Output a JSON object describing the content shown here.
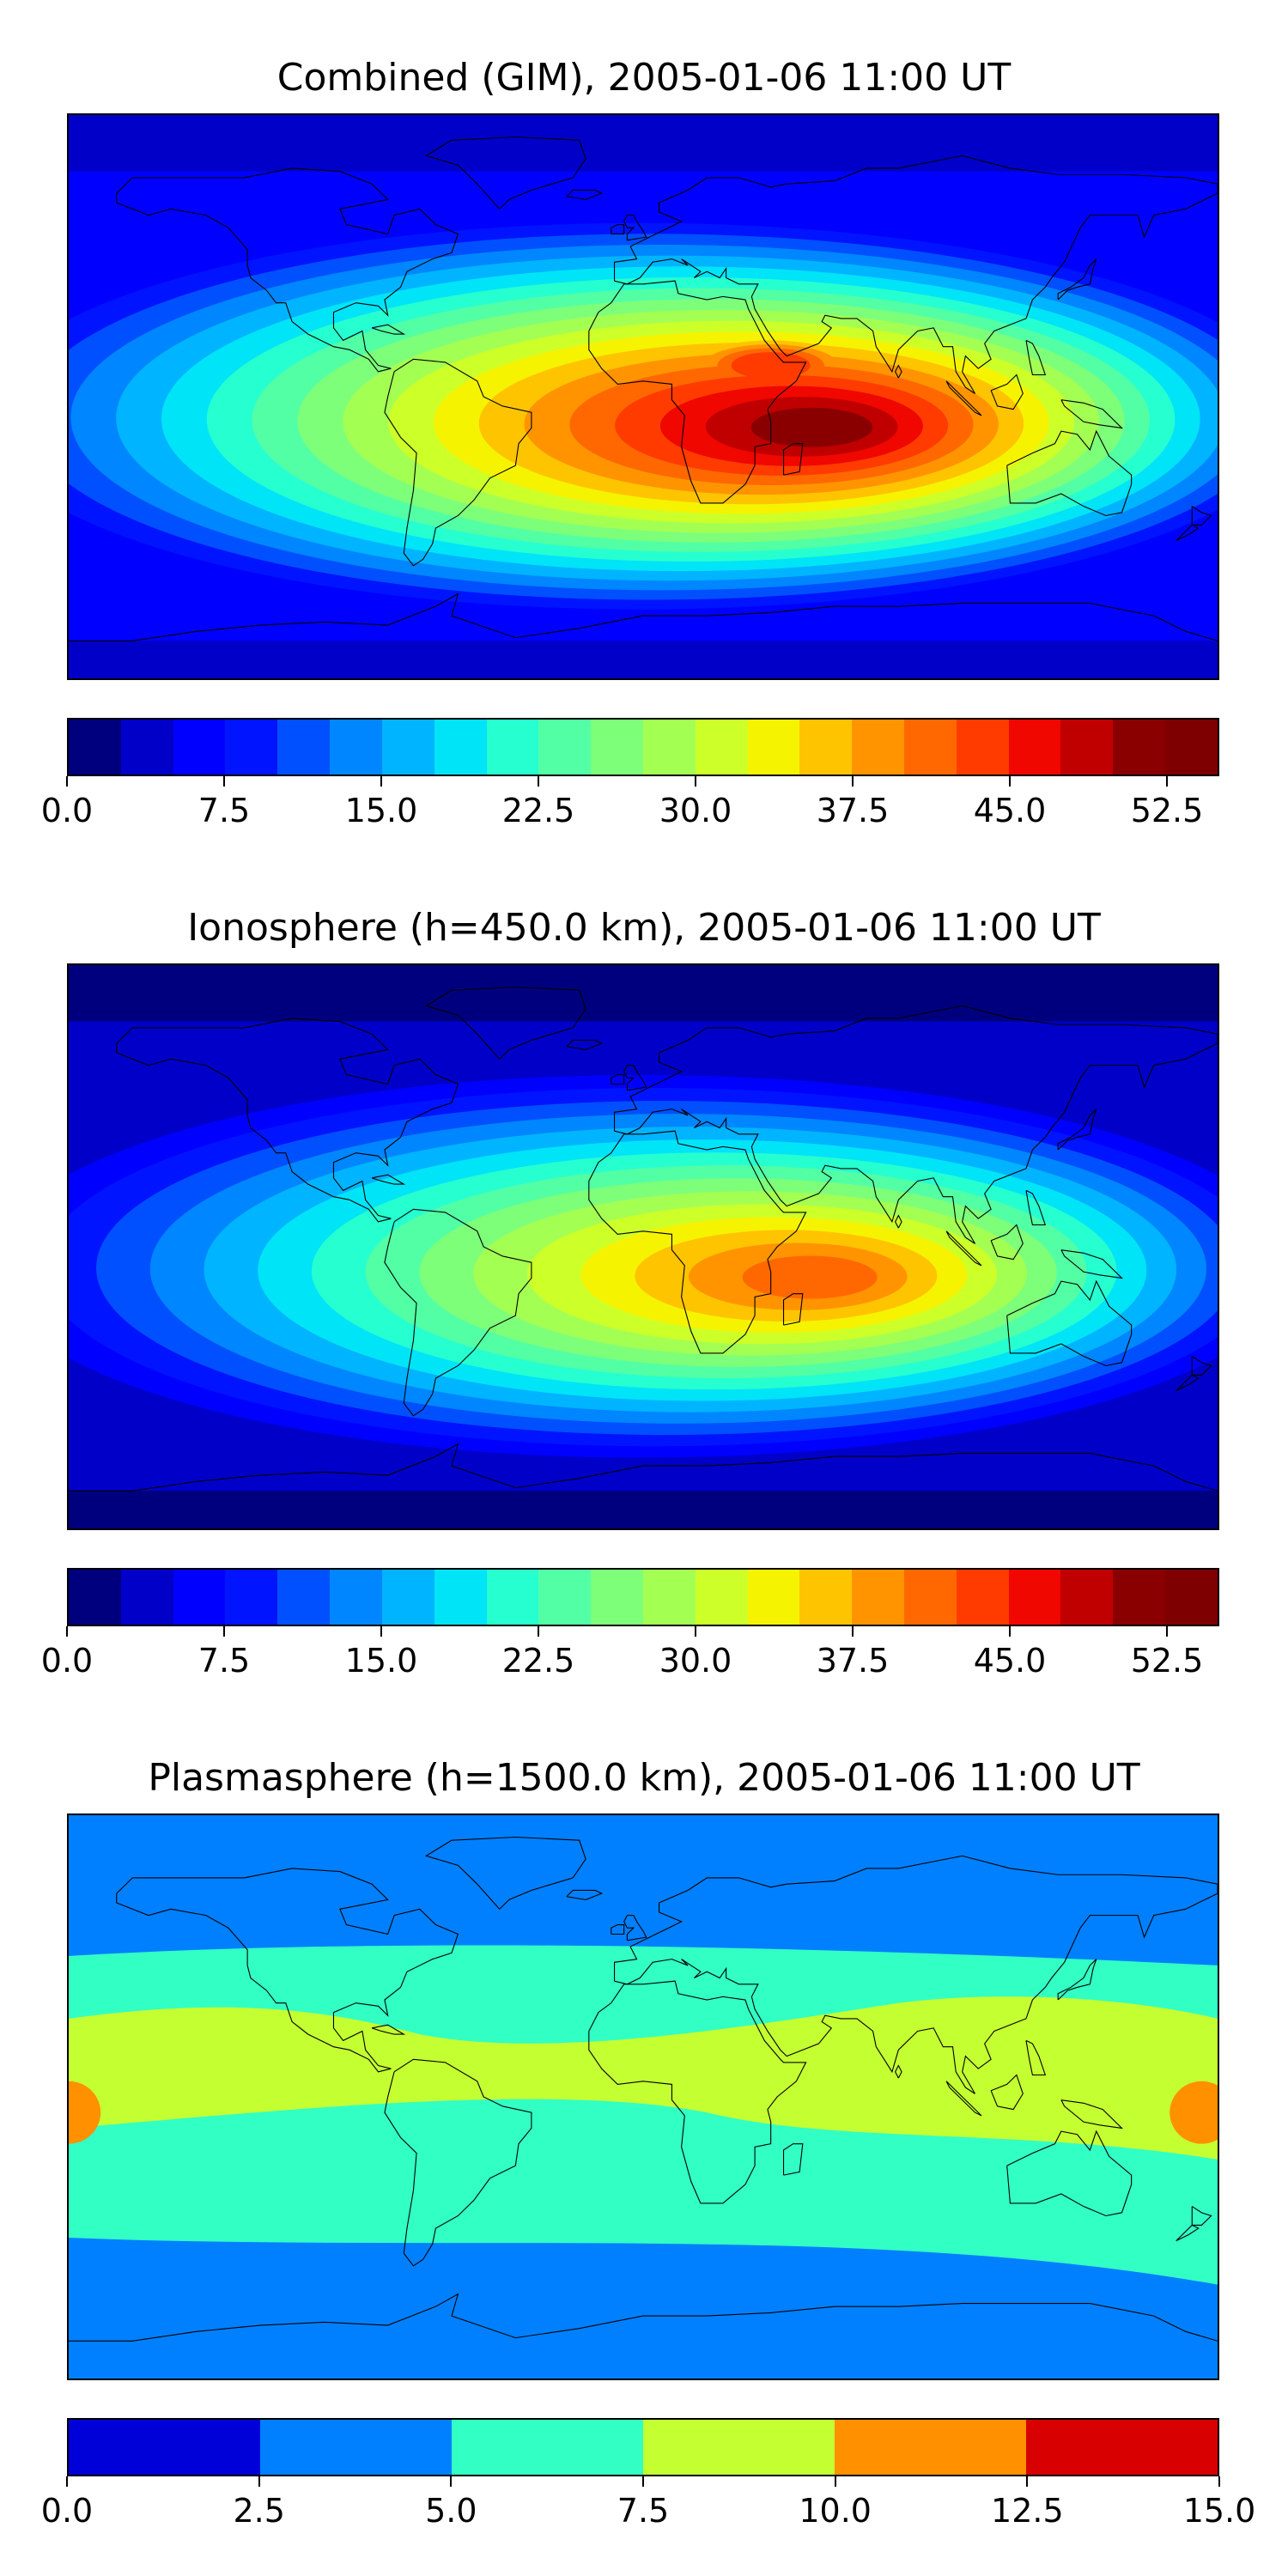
{
  "chart_data": [
    {
      "type": "heatmap",
      "title": "Combined (GIM), 2005-01-06 11:00 UT",
      "xlabel": "",
      "ylabel": "",
      "lon_range": [
        -180,
        180
      ],
      "lat_range": [
        -90,
        90
      ],
      "levels": [
        0.0,
        2.5,
        5.0,
        7.5,
        10.0,
        12.5,
        15.0,
        17.5,
        20.0,
        22.5,
        25.0,
        27.5,
        30.0,
        32.5,
        35.0,
        37.5,
        40.0,
        42.5,
        45.0,
        47.5,
        50.0,
        52.5,
        55.0
      ],
      "colorbar_ticks": [
        "0.0",
        "7.5",
        "15.0",
        "22.5",
        "30.0",
        "37.5",
        "45.0",
        "52.5"
      ],
      "colormap": [
        "#00007f",
        "#0000c9",
        "#0000ff",
        "#0014ff",
        "#0050ff",
        "#0086ff",
        "#00b4ff",
        "#00e4f8",
        "#26ffd0",
        "#53ffa4",
        "#7dff7a",
        "#a4ff53",
        "#cdff29",
        "#f6f300",
        "#ffc400",
        "#ff9400",
        "#ff6800",
        "#ff3b00",
        "#f00700",
        "#c00000",
        "#8a0000",
        "#7f0000"
      ],
      "features": {
        "background_level": 5.0,
        "peak": {
          "lon": 56,
          "lat": -10,
          "value": 50
        },
        "secondary_peak": {
          "lon": 40,
          "lat": 10,
          "value": 43
        },
        "equatorial_band": {
          "lat_north": 12,
          "lat_south": -20,
          "value": 30
        }
      }
    },
    {
      "type": "heatmap",
      "title": "Ionosphere  (h=450.0 km), 2005-01-06 11:00 UT",
      "xlabel": "",
      "ylabel": "",
      "lon_range": [
        -180,
        180
      ],
      "lat_range": [
        -90,
        90
      ],
      "levels": [
        0.0,
        2.5,
        5.0,
        7.5,
        10.0,
        12.5,
        15.0,
        17.5,
        20.0,
        22.5,
        25.0,
        27.5,
        30.0,
        32.5,
        35.0,
        37.5,
        40.0,
        42.5,
        45.0,
        47.5,
        50.0,
        52.5,
        55.0
      ],
      "colorbar_ticks": [
        "0.0",
        "7.5",
        "15.0",
        "22.5",
        "30.0",
        "37.5",
        "45.0",
        "52.5"
      ],
      "colormap": [
        "#00007f",
        "#0000c9",
        "#0000ff",
        "#0014ff",
        "#0050ff",
        "#0086ff",
        "#00b4ff",
        "#00e4f8",
        "#26ffd0",
        "#53ffa4",
        "#7dff7a",
        "#a4ff53",
        "#cdff29",
        "#f6f300",
        "#ffc400",
        "#ff9400",
        "#ff6800",
        "#ff3b00",
        "#f00700",
        "#c00000",
        "#8a0000",
        "#7f0000"
      ],
      "features": {
        "background_level": 2.5,
        "peak": {
          "lon": 56,
          "lat": -10,
          "value": 42
        },
        "equatorial_band": {
          "lat_north": 12,
          "lat_south": -20,
          "value": 27
        }
      }
    },
    {
      "type": "heatmap",
      "title": "Plasmasphere (h=1500.0 km), 2005-01-06 11:00 UT",
      "xlabel": "",
      "ylabel": "",
      "lon_range": [
        -180,
        180
      ],
      "lat_range": [
        -90,
        90
      ],
      "levels": [
        0.0,
        2.5,
        5.0,
        7.5,
        10.0,
        12.5,
        15.0
      ],
      "colorbar_ticks": [
        "0.0",
        "2.5",
        "5.0",
        "7.5",
        "10.0",
        "12.5",
        "15.0"
      ],
      "colormap": [
        "#0000d8",
        "#0080ff",
        "#32ffc4",
        "#c4ff32",
        "#ff9000",
        "#d80000"
      ],
      "features": {
        "background_level": 2.5,
        "band_level": 7.5,
        "peak_east": {
          "lon": 175,
          "lat": -5,
          "value": 11
        },
        "peak_west": {
          "lon": -180,
          "lat": -5,
          "value": 11
        }
      }
    }
  ]
}
